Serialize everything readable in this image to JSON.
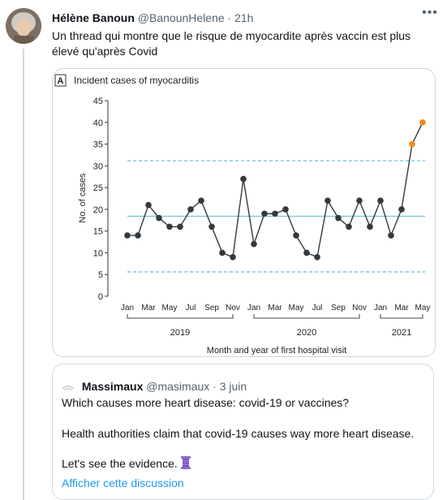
{
  "tweet": {
    "author_name": "Hélène Banoun",
    "handle": "@BanounHelene",
    "separator": "·",
    "time": "21h",
    "text": "Un thread qui montre que le risque de myocardite après vaccin est plus élevé qu'après Covid",
    "more_icon": "ellipsis-icon"
  },
  "chart_data": {
    "type": "line",
    "panel_letter": "A",
    "title": "Incident cases of myocarditis",
    "ylabel": "No. of cases",
    "xlabel": "Month and year of first hospital visit",
    "ylim": [
      0,
      45
    ],
    "y_ticks": [
      0,
      5,
      10,
      15,
      20,
      25,
      30,
      35,
      40,
      45
    ],
    "x_tick_labels": [
      "Jan",
      "Mar",
      "May",
      "Jul",
      "Sep",
      "Nov",
      "Jan",
      "Mar",
      "May",
      "Jul",
      "Sep",
      "Nov",
      "Jan",
      "Mar",
      "May"
    ],
    "year_groups": [
      "2019",
      "2020",
      "2021"
    ],
    "series": [
      {
        "values": [
          14,
          14,
          21,
          18,
          16,
          16,
          20,
          22,
          16,
          10,
          9,
          27,
          12,
          19,
          19,
          20,
          14,
          10,
          9,
          22,
          18,
          16,
          22,
          16,
          22,
          14,
          20,
          35,
          40
        ],
        "highlight_from_index": 27,
        "color": "#333a3f",
        "highlight_color": "#f28a16"
      }
    ],
    "reference_lines": [
      {
        "value": 31.2,
        "style": "dashed",
        "color": "#7cc7dd"
      },
      {
        "value": 18.4,
        "style": "solid",
        "color": "#7cc7dd"
      },
      {
        "value": 5.6,
        "style": "dashed",
        "color": "#7cc7dd"
      }
    ],
    "grid": false
  },
  "quote": {
    "author_name": "Massimaux",
    "handle": "@masimaux",
    "separator": "·",
    "date": "3 juin",
    "line1": "Which causes more heart disease: covid-19 or vaccines?",
    "line2": "Health authorities claim that covid-19 causes way more heart disease.",
    "line3": "Let's see the evidence.",
    "emoji_icon": "thread-spool-icon",
    "link": "Afficher cette discussion"
  }
}
